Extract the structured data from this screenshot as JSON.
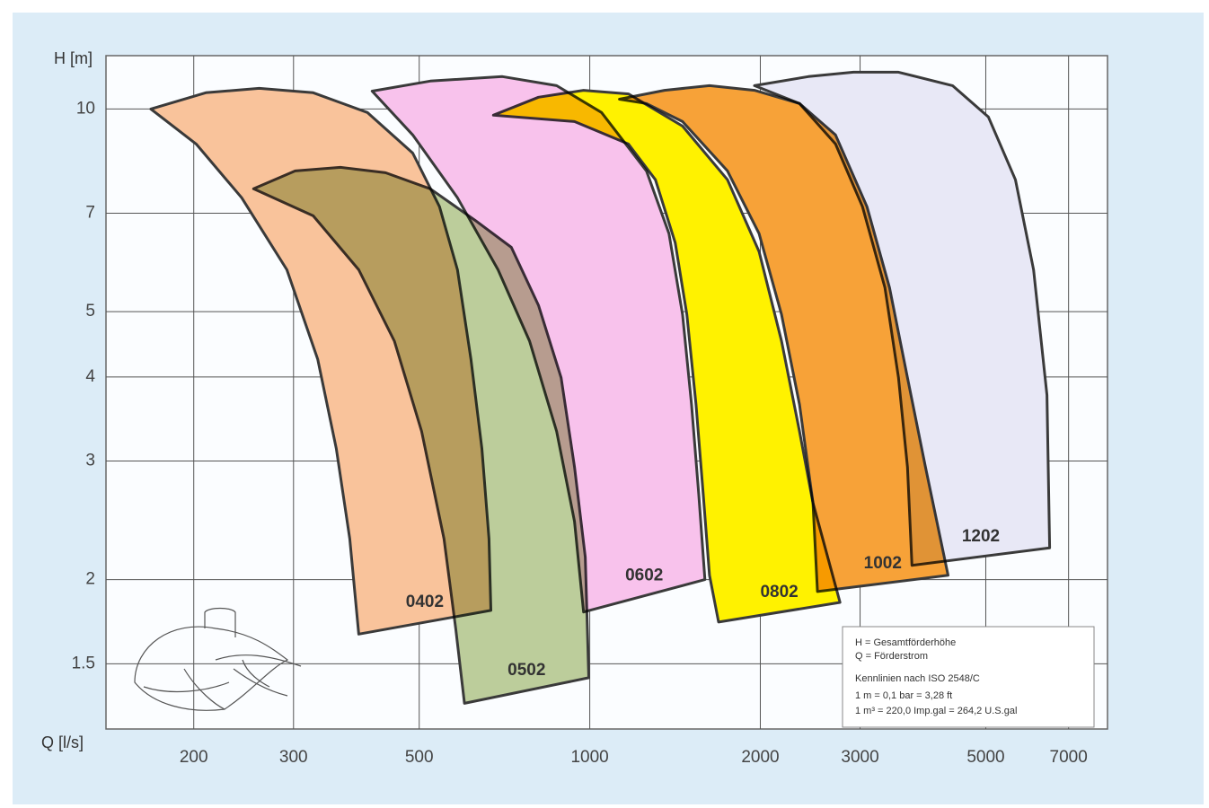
{
  "chart_data": {
    "type": "polygon",
    "x_label": "Q [l/s]",
    "y_label": "H [m]",
    "log_x": true,
    "log_y": true,
    "grid": true,
    "xlim": [
      140,
      8200
    ],
    "ylim": [
      1.2,
      12
    ],
    "xticks": [
      200,
      300,
      500,
      1000,
      2000,
      3000,
      5000,
      7000
    ],
    "yticks": [
      1.5,
      2,
      3,
      4,
      5,
      7,
      10
    ],
    "series": [
      {
        "name": "0402",
        "color": "#f9c39b",
        "x": [
          168,
          210,
          261,
          325,
          405,
          487,
          543,
          584,
          617,
          645,
          664,
          669,
          391,
          377,
          357,
          331,
          292,
          243,
          202
        ],
        "values": [
          10,
          10.57,
          10.73,
          10.57,
          9.88,
          8.6,
          7.16,
          5.77,
          4.25,
          3.13,
          2.3,
          1.8,
          1.66,
          2.3,
          3.13,
          4.25,
          5.77,
          7.38,
          8.87
        ]
      },
      {
        "name": "0502",
        "color": "#bccd9b",
        "x": [
          255,
          302,
          363,
          436,
          523,
          628,
          727,
          812,
          890,
          940,
          982,
          996,
          601,
          580,
          553,
          505,
          452,
          391,
          325
        ],
        "values": [
          7.61,
          8.09,
          8.19,
          8.04,
          7.61,
          6.83,
          6.23,
          5.11,
          3.99,
          2.94,
          2.16,
          1.43,
          1.31,
          1.69,
          2.3,
          3.32,
          4.52,
          5.77,
          6.94
        ]
      },
      {
        "name": "0602",
        "color": "#f8c2ec",
        "x": [
          413,
          523,
          701,
          874,
          1049,
          1259,
          1380,
          1458,
          1512,
          1557,
          1597,
          975,
          940,
          874,
          783,
          689,
          584,
          487
        ],
        "values": [
          10.63,
          11.0,
          11.17,
          10.83,
          9.88,
          8.09,
          6.53,
          4.95,
          3.64,
          2.68,
          2.0,
          1.79,
          2.44,
          3.32,
          4.52,
          5.77,
          7.38,
          9.15
        ]
      },
      {
        "name": "0802",
        "color": "#fff200",
        "x": [
          676,
          812,
          975,
          1170,
          1458,
          1750,
          1990,
          2180,
          2345,
          2477,
          2765,
          1688,
          1627,
          1586,
          1540,
          1484,
          1415,
          1306,
          1170,
          940
        ],
        "values": [
          9.79,
          10.41,
          10.66,
          10.53,
          9.43,
          7.85,
          6.14,
          4.52,
          3.32,
          2.6,
          1.85,
          1.73,
          2.03,
          2.68,
          3.64,
          4.95,
          6.33,
          7.85,
          8.87,
          9.58
        ]
      },
      {
        "name": "1002",
        "color": "#f7a238",
        "x": [
          1128,
          1355,
          1627,
          1953,
          2345,
          2715,
          3085,
          3381,
          3637,
          3913,
          4289,
          2523,
          2477,
          2345,
          2180,
          1990,
          1750,
          1458,
          1259
        ],
        "values": [
          10.34,
          10.66,
          10.83,
          10.66,
          10.19,
          9.15,
          7.16,
          5.43,
          3.99,
          2.94,
          2.03,
          1.92,
          2.6,
          3.64,
          4.95,
          6.53,
          8.09,
          9.58,
          10.19
        ]
      },
      {
        "name": "1202",
        "color": "#e8e8f6",
        "x": [
          1953,
          2432,
          2921,
          3507,
          4368,
          5054,
          5641,
          6071,
          6412,
          6483,
          3704,
          3637,
          3507,
          3319,
          3029,
          2715,
          2345
        ],
        "values": [
          10.83,
          11.17,
          11.34,
          11.34,
          10.83,
          9.73,
          7.85,
          5.77,
          3.76,
          2.23,
          2.1,
          2.94,
          3.99,
          5.43,
          7.16,
          8.87,
          10.19
        ]
      }
    ],
    "notes": [
      "H = Gesamtförderhöhe",
      "Q = Förderstrom",
      "Kennlinien nach ISO 2548/C",
      "1 m  = 0,1 bar = 3,28 ft",
      "1 m³ = 220,0 Imp.gal = 264,2 U.S.gal"
    ]
  }
}
